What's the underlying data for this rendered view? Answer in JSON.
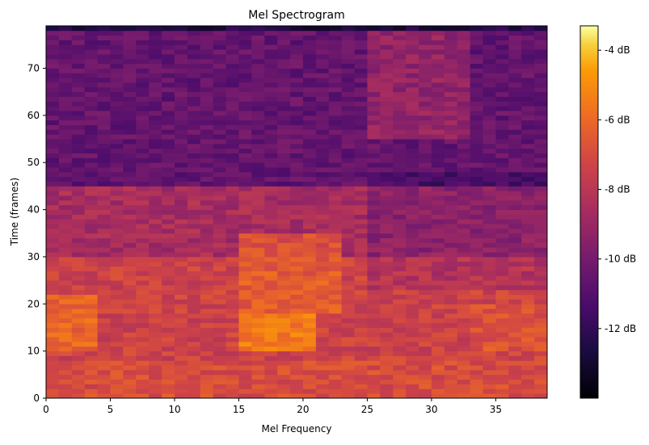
{
  "chart_data": {
    "type": "heatmap",
    "title": "Mel Spectrogram",
    "xlabel": "Mel Frequency",
    "ylabel": "Time (frames)",
    "colormap": "inferno",
    "x_bins": 39,
    "y_bins": 79,
    "xlim": [
      0,
      39
    ],
    "ylim": [
      0,
      79
    ],
    "x_ticks": [
      0,
      5,
      10,
      15,
      20,
      25,
      30,
      35
    ],
    "y_ticks": [
      0,
      10,
      20,
      30,
      40,
      50,
      60,
      70
    ],
    "colorbar": {
      "range_db": [
        -14,
        -3.3
      ],
      "ticks": [
        -4,
        -6,
        -8,
        -10,
        -12
      ],
      "tick_labels": [
        "-4 dB",
        "-6 dB",
        "-8 dB",
        "-10 dB",
        "-12 dB"
      ]
    },
    "description_regions": [
      {
        "x_range": [
          0,
          4
        ],
        "y_range": [
          10,
          22
        ],
        "level_db": -5.5
      },
      {
        "x_range": [
          15,
          21
        ],
        "y_range": [
          10,
          18
        ],
        "level_db": -4.5
      },
      {
        "x_range": [
          15,
          23
        ],
        "y_range": [
          18,
          35
        ],
        "level_db": -6.0
      },
      {
        "x_range": [
          33,
          39
        ],
        "y_range": [
          10,
          20
        ],
        "level_db": -6.5
      },
      {
        "x_range": [
          0,
          39
        ],
        "y_range": [
          48,
          78
        ],
        "level_db": -10.5
      },
      {
        "x_range": [
          25,
          33
        ],
        "y_range": [
          55,
          78
        ],
        "level_db": -8.5
      },
      {
        "x_range": [
          0,
          39
        ],
        "y_range": [
          78,
          79
        ],
        "level_db": -13.5
      }
    ]
  }
}
